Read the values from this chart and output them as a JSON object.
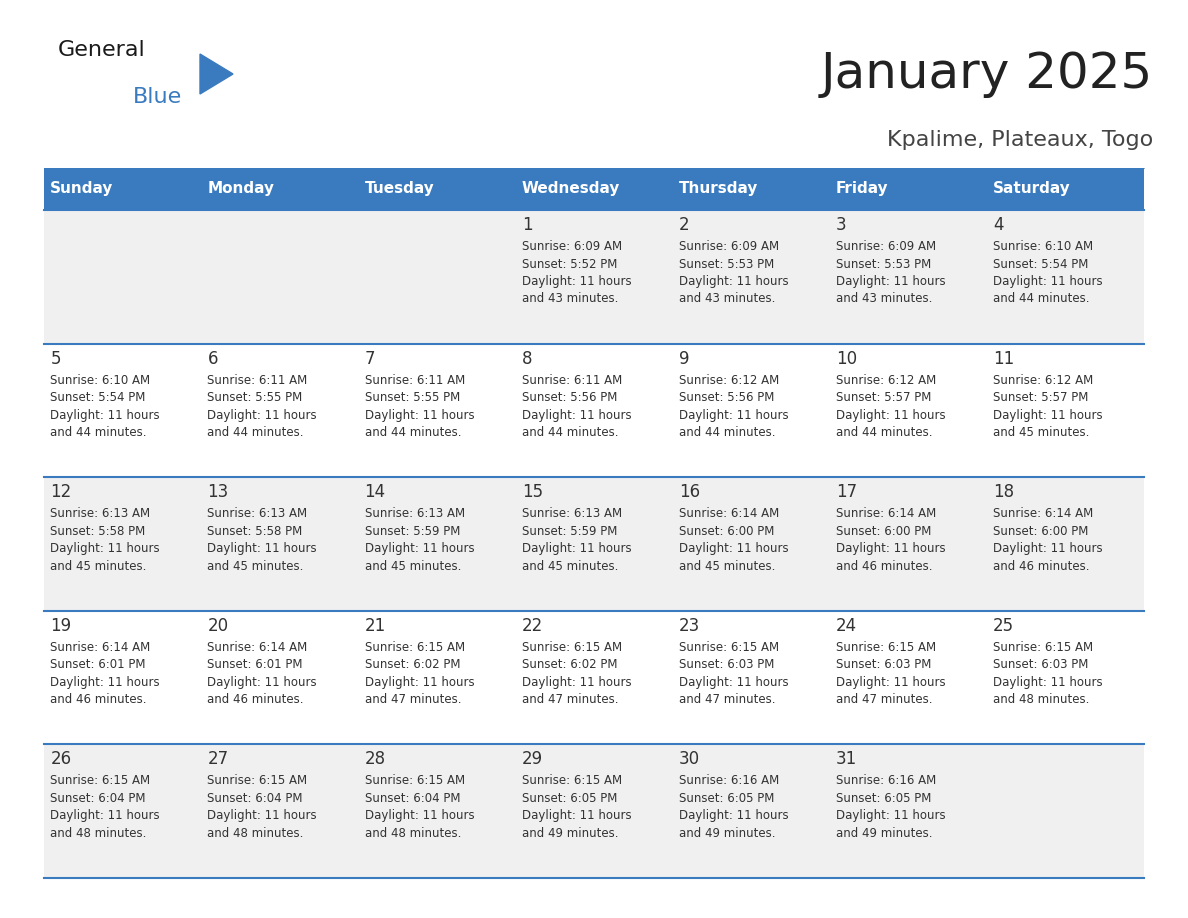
{
  "title": "January 2025",
  "subtitle": "Kpalime, Plateaux, Togo",
  "days_of_week": [
    "Sunday",
    "Monday",
    "Tuesday",
    "Wednesday",
    "Thursday",
    "Friday",
    "Saturday"
  ],
  "header_bg": "#3a7bbf",
  "header_text": "#ffffff",
  "row_bg_odd": "#f0f0f0",
  "row_bg_even": "#ffffff",
  "divider_color": "#3a7bbf",
  "cell_text_color": "#333333",
  "day_num_color": "#333333",
  "title_color": "#222222",
  "subtitle_color": "#444444",
  "logo_black": "#1a1a1a",
  "logo_blue": "#3a7bbf",
  "calendar": [
    [
      {
        "day": null,
        "info": null
      },
      {
        "day": null,
        "info": null
      },
      {
        "day": null,
        "info": null
      },
      {
        "day": 1,
        "info": "Sunrise: 6:09 AM\nSunset: 5:52 PM\nDaylight: 11 hours\nand 43 minutes."
      },
      {
        "day": 2,
        "info": "Sunrise: 6:09 AM\nSunset: 5:53 PM\nDaylight: 11 hours\nand 43 minutes."
      },
      {
        "day": 3,
        "info": "Sunrise: 6:09 AM\nSunset: 5:53 PM\nDaylight: 11 hours\nand 43 minutes."
      },
      {
        "day": 4,
        "info": "Sunrise: 6:10 AM\nSunset: 5:54 PM\nDaylight: 11 hours\nand 44 minutes."
      }
    ],
    [
      {
        "day": 5,
        "info": "Sunrise: 6:10 AM\nSunset: 5:54 PM\nDaylight: 11 hours\nand 44 minutes."
      },
      {
        "day": 6,
        "info": "Sunrise: 6:11 AM\nSunset: 5:55 PM\nDaylight: 11 hours\nand 44 minutes."
      },
      {
        "day": 7,
        "info": "Sunrise: 6:11 AM\nSunset: 5:55 PM\nDaylight: 11 hours\nand 44 minutes."
      },
      {
        "day": 8,
        "info": "Sunrise: 6:11 AM\nSunset: 5:56 PM\nDaylight: 11 hours\nand 44 minutes."
      },
      {
        "day": 9,
        "info": "Sunrise: 6:12 AM\nSunset: 5:56 PM\nDaylight: 11 hours\nand 44 minutes."
      },
      {
        "day": 10,
        "info": "Sunrise: 6:12 AM\nSunset: 5:57 PM\nDaylight: 11 hours\nand 44 minutes."
      },
      {
        "day": 11,
        "info": "Sunrise: 6:12 AM\nSunset: 5:57 PM\nDaylight: 11 hours\nand 45 minutes."
      }
    ],
    [
      {
        "day": 12,
        "info": "Sunrise: 6:13 AM\nSunset: 5:58 PM\nDaylight: 11 hours\nand 45 minutes."
      },
      {
        "day": 13,
        "info": "Sunrise: 6:13 AM\nSunset: 5:58 PM\nDaylight: 11 hours\nand 45 minutes."
      },
      {
        "day": 14,
        "info": "Sunrise: 6:13 AM\nSunset: 5:59 PM\nDaylight: 11 hours\nand 45 minutes."
      },
      {
        "day": 15,
        "info": "Sunrise: 6:13 AM\nSunset: 5:59 PM\nDaylight: 11 hours\nand 45 minutes."
      },
      {
        "day": 16,
        "info": "Sunrise: 6:14 AM\nSunset: 6:00 PM\nDaylight: 11 hours\nand 45 minutes."
      },
      {
        "day": 17,
        "info": "Sunrise: 6:14 AM\nSunset: 6:00 PM\nDaylight: 11 hours\nand 46 minutes."
      },
      {
        "day": 18,
        "info": "Sunrise: 6:14 AM\nSunset: 6:00 PM\nDaylight: 11 hours\nand 46 minutes."
      }
    ],
    [
      {
        "day": 19,
        "info": "Sunrise: 6:14 AM\nSunset: 6:01 PM\nDaylight: 11 hours\nand 46 minutes."
      },
      {
        "day": 20,
        "info": "Sunrise: 6:14 AM\nSunset: 6:01 PM\nDaylight: 11 hours\nand 46 minutes."
      },
      {
        "day": 21,
        "info": "Sunrise: 6:15 AM\nSunset: 6:02 PM\nDaylight: 11 hours\nand 47 minutes."
      },
      {
        "day": 22,
        "info": "Sunrise: 6:15 AM\nSunset: 6:02 PM\nDaylight: 11 hours\nand 47 minutes."
      },
      {
        "day": 23,
        "info": "Sunrise: 6:15 AM\nSunset: 6:03 PM\nDaylight: 11 hours\nand 47 minutes."
      },
      {
        "day": 24,
        "info": "Sunrise: 6:15 AM\nSunset: 6:03 PM\nDaylight: 11 hours\nand 47 minutes."
      },
      {
        "day": 25,
        "info": "Sunrise: 6:15 AM\nSunset: 6:03 PM\nDaylight: 11 hours\nand 48 minutes."
      }
    ],
    [
      {
        "day": 26,
        "info": "Sunrise: 6:15 AM\nSunset: 6:04 PM\nDaylight: 11 hours\nand 48 minutes."
      },
      {
        "day": 27,
        "info": "Sunrise: 6:15 AM\nSunset: 6:04 PM\nDaylight: 11 hours\nand 48 minutes."
      },
      {
        "day": 28,
        "info": "Sunrise: 6:15 AM\nSunset: 6:04 PM\nDaylight: 11 hours\nand 48 minutes."
      },
      {
        "day": 29,
        "info": "Sunrise: 6:15 AM\nSunset: 6:05 PM\nDaylight: 11 hours\nand 49 minutes."
      },
      {
        "day": 30,
        "info": "Sunrise: 6:16 AM\nSunset: 6:05 PM\nDaylight: 11 hours\nand 49 minutes."
      },
      {
        "day": 31,
        "info": "Sunrise: 6:16 AM\nSunset: 6:05 PM\nDaylight: 11 hours\nand 49 minutes."
      },
      {
        "day": null,
        "info": null
      }
    ]
  ],
  "fig_width": 11.88,
  "fig_height": 9.18,
  "dpi": 100,
  "header_fontsize": 11,
  "day_num_fontsize": 12,
  "info_fontsize": 8.5,
  "title_fontsize": 36,
  "subtitle_fontsize": 16,
  "logo_general_fontsize": 16,
  "logo_blue_fontsize": 16
}
